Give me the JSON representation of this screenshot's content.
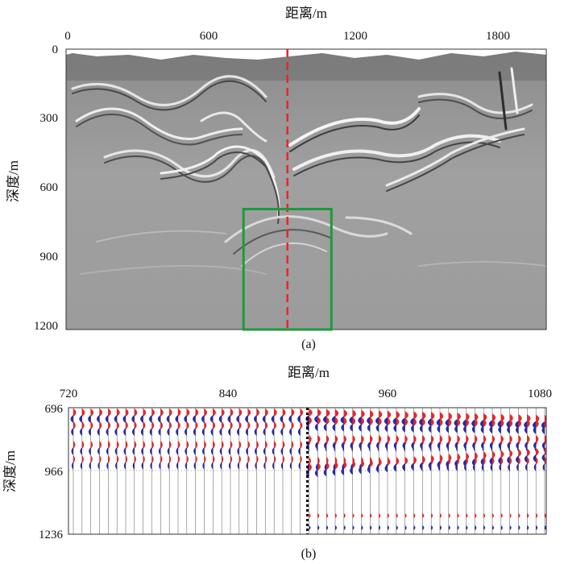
{
  "figure": {
    "panel_a": {
      "label": "(a)",
      "x_axis_title": "距离/m",
      "y_axis_title": "深度/m",
      "x_ticks": [
        "0",
        "600",
        "1200",
        "1800"
      ],
      "y_ticks": [
        "0",
        "300",
        "600",
        "900",
        "1200"
      ],
      "x_range": [
        0,
        1960
      ],
      "y_range": [
        0,
        1220
      ],
      "image_content": "seismic depth migration section (grayscale)",
      "marker_line": {
        "x": 900,
        "style": "dashed",
        "color": "#e8262c"
      },
      "zoom_box": {
        "x_range": [
          720,
          1080
        ],
        "y_range": [
          696,
          1236
        ],
        "color": "#1b9a3c"
      }
    },
    "panel_b": {
      "label": "(b)",
      "x_axis_title": "距离/m",
      "y_axis_title": "深度/m",
      "x_ticks": [
        "720",
        "840",
        "960",
        "1080"
      ],
      "y_ticks": [
        "696",
        "966",
        "1236"
      ],
      "x_range": [
        720,
        1080
      ],
      "y_range": [
        696,
        1236
      ],
      "content": "wiggle traces with red (positive) / blue (negative) fill",
      "positive_color": "#e8262c",
      "negative_color": "#2b2ba0",
      "marker_line": {
        "x": 900,
        "style": "dotted",
        "color": "#000000"
      }
    }
  }
}
